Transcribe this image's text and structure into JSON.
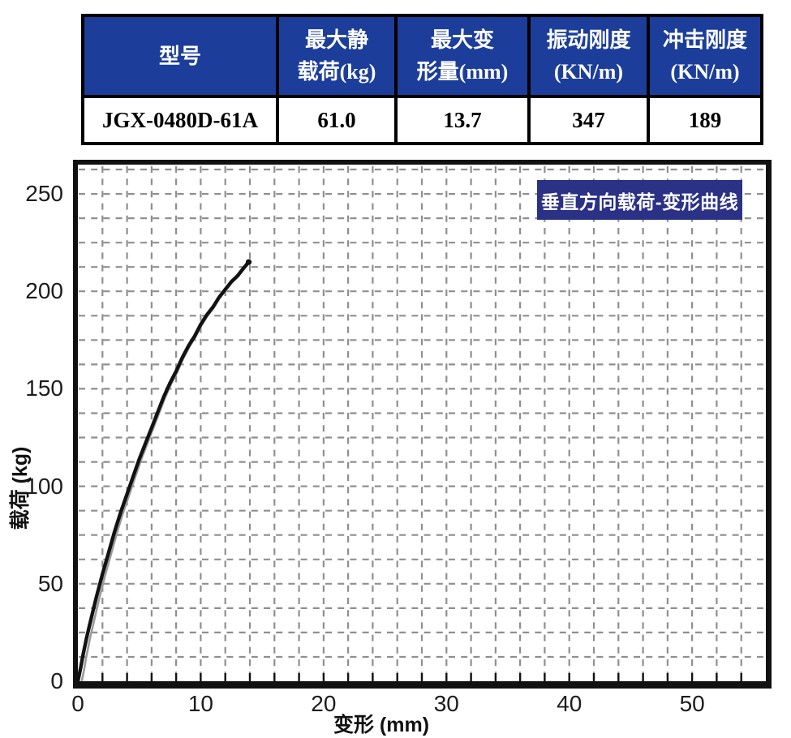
{
  "table": {
    "headers": [
      {
        "line1": "型号",
        "line2": ""
      },
      {
        "line1": "最大静",
        "line2": "载荷(kg)"
      },
      {
        "line1": "最大变",
        "line2": "形量(mm)"
      },
      {
        "line1": "振动刚度",
        "line2": "(KN/m)"
      },
      {
        "line1": "冲击刚度",
        "line2": "(KN/m)"
      }
    ],
    "row": [
      "JGX-0480D-61A",
      "61.0",
      "13.7",
      "347",
      "189"
    ]
  },
  "chart_data": {
    "type": "line",
    "title": "垂直方向载荷-变形曲线",
    "xlabel": "变形 (mm)",
    "ylabel": "载荷 (kg)",
    "xlim": [
      0,
      56
    ],
    "ylim": [
      0,
      265
    ],
    "xticks": [
      0,
      10,
      20,
      30,
      40,
      50
    ],
    "yticks": [
      0,
      50,
      100,
      150,
      200,
      250
    ],
    "grid": {
      "x_step": 2,
      "y_step": 12.5,
      "style": "dashed"
    },
    "legend_position": "top-right",
    "series": [
      {
        "name": "垂直方向载荷-变形曲线",
        "points": [
          [
            0,
            0
          ],
          [
            0.2,
            6
          ],
          [
            0.4,
            13
          ],
          [
            0.7,
            22
          ],
          [
            1,
            30
          ],
          [
            1.5,
            43
          ],
          [
            2,
            55
          ],
          [
            2.5,
            66
          ],
          [
            3,
            77
          ],
          [
            3.5,
            87
          ],
          [
            4,
            96
          ],
          [
            4.5,
            105
          ],
          [
            5,
            114
          ],
          [
            5.5,
            122
          ],
          [
            6,
            130
          ],
          [
            6.5,
            138
          ],
          [
            7,
            146
          ],
          [
            7.5,
            153
          ],
          [
            8,
            159
          ],
          [
            8.5,
            166
          ],
          [
            9,
            172
          ],
          [
            9.5,
            177
          ],
          [
            10,
            183
          ],
          [
            10.5,
            188
          ],
          [
            11,
            192
          ],
          [
            11.5,
            197
          ],
          [
            12,
            201
          ],
          [
            12.5,
            205
          ],
          [
            13,
            208
          ],
          [
            13.5,
            212
          ],
          [
            13.9,
            215
          ]
        ]
      }
    ],
    "colors": {
      "table_header_bg": "#1c3e9a",
      "table_header_text": "#ffffff",
      "legend_bg": "#2b3185",
      "legend_text": "#ffffff",
      "curve": "#121212",
      "curve_echo": "#9a9a9a",
      "grid": "#8f8f8f",
      "axis": "#111111"
    }
  }
}
